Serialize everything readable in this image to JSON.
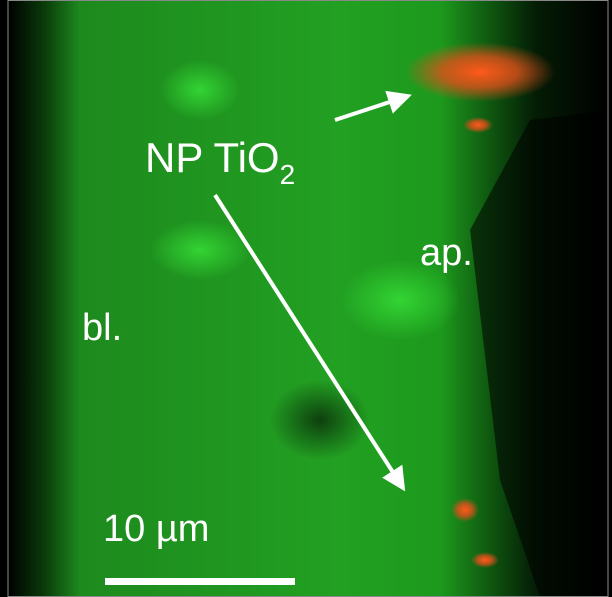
{
  "image": {
    "labels": {
      "particles": "NP TiO",
      "particles_subscript": "2",
      "apical": "ap.",
      "basolateral": "bl."
    },
    "scale_bar": "10 µm"
  }
}
